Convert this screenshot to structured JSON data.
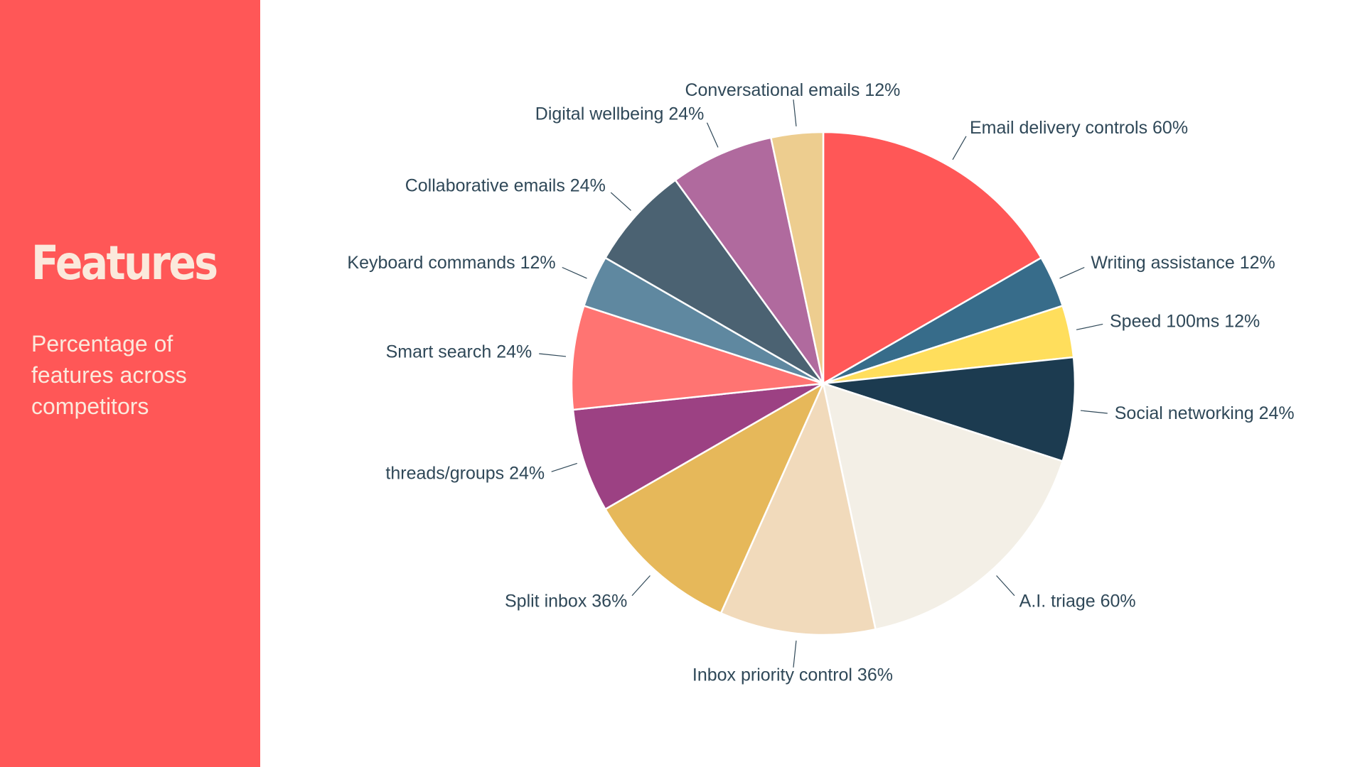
{
  "panel": {
    "title": "Features",
    "subtitle": "Percentage of features across competitors",
    "background": "#ff5757",
    "text_color": "#fbe9dc"
  },
  "chart_data": {
    "type": "pie",
    "start_angle": "12 o'clock",
    "direction": "clockwise",
    "label_color": "#2f4858",
    "slices": [
      {
        "label": "Email delivery controls 60%",
        "value": 60,
        "color": "#ff5757"
      },
      {
        "label": "Writing assistance 12%",
        "value": 12,
        "color": "#376c8a"
      },
      {
        "label": "Speed 100ms 12%",
        "value": 12,
        "color": "#ffde5c"
      },
      {
        "label": "Social networking 24%",
        "value": 24,
        "color": "#1c3b50"
      },
      {
        "label": "A.I. triage 60%",
        "value": 60,
        "color": "#f3efe6"
      },
      {
        "label": "Inbox priority control 36%",
        "value": 36,
        "color": "#f1dabb"
      },
      {
        "label": "Split inbox 36%",
        "value": 36,
        "color": "#e6b85a"
      },
      {
        "label": "threads/groups 24%",
        "value": 24,
        "color": "#9c4183"
      },
      {
        "label": "Smart search 24%",
        "value": 24,
        "color": "#ff7472"
      },
      {
        "label": "Keyboard commands 12%",
        "value": 12,
        "color": "#5f88a0"
      },
      {
        "label": "Collaborative emails 24%",
        "value": 24,
        "color": "#4b6272"
      },
      {
        "label": "Digital wellbeing 24%",
        "value": 24,
        "color": "#b06a9e"
      },
      {
        "label": "Conversational emails 12%",
        "value": 12,
        "color": "#edcd8f"
      }
    ]
  }
}
